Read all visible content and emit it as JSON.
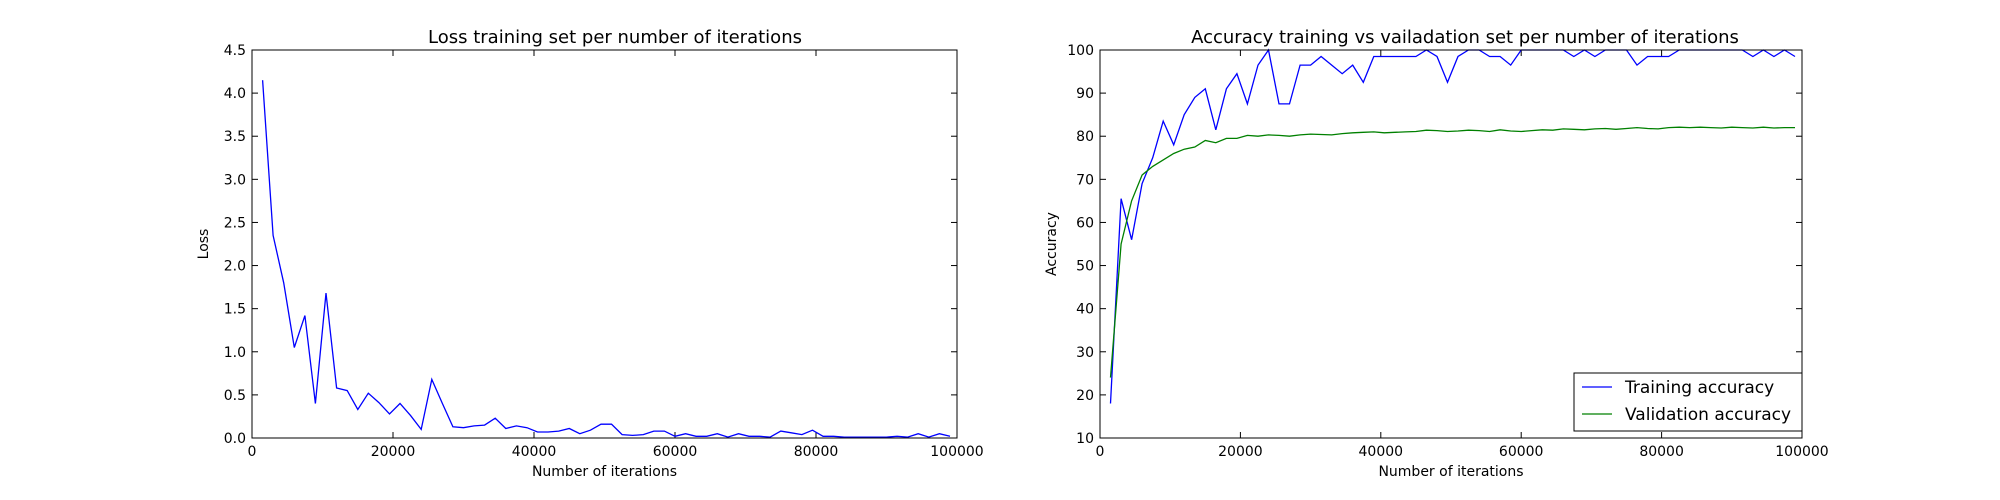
{
  "chart_data": [
    {
      "type": "line",
      "title": "Loss training set per number of iterations",
      "xlabel": "Number of iterations",
      "ylabel": "Loss",
      "xlim": [
        0,
        100000
      ],
      "ylim": [
        0,
        4.5
      ],
      "xticks": [
        "0",
        "20000",
        "40000",
        "60000",
        "80000",
        "100000"
      ],
      "yticks": [
        "0.0",
        "0.5",
        "1.0",
        "1.5",
        "2.0",
        "2.5",
        "3.0",
        "3.5",
        "4.0",
        "4.5"
      ],
      "grid": false,
      "series": [
        {
          "color": "#0000ff",
          "x": [
            1500,
            3000,
            4500,
            6000,
            7500,
            9000,
            10500,
            12000,
            13500,
            15000,
            16500,
            18000,
            19500,
            21000,
            22500,
            24000,
            25500,
            27000,
            28500,
            30000,
            31500,
            33000,
            34500,
            36000,
            37500,
            39000,
            40500,
            42000,
            43500,
            45000,
            46500,
            48000,
            49500,
            51000,
            52500,
            54000,
            55500,
            57000,
            58500,
            60000,
            61500,
            63000,
            64500,
            66000,
            67500,
            69000,
            70500,
            72000,
            73500,
            75000,
            76500,
            78000,
            79500,
            81000,
            82500,
            84000,
            85500,
            87000,
            88500,
            90000,
            91500,
            93000,
            94500,
            96000,
            97500,
            99000
          ],
          "y": [
            4.15,
            2.35,
            1.8,
            1.05,
            1.42,
            0.4,
            1.68,
            0.58,
            0.55,
            0.33,
            0.52,
            0.41,
            0.28,
            0.4,
            0.26,
            0.1,
            0.68,
            0.4,
            0.13,
            0.12,
            0.14,
            0.15,
            0.23,
            0.11,
            0.14,
            0.12,
            0.07,
            0.07,
            0.08,
            0.11,
            0.05,
            0.09,
            0.16,
            0.16,
            0.04,
            0.03,
            0.04,
            0.08,
            0.08,
            0.02,
            0.05,
            0.02,
            0.02,
            0.05,
            0.01,
            0.05,
            0.02,
            0.02,
            0.01,
            0.08,
            0.06,
            0.04,
            0.09,
            0.02,
            0.02,
            0.01,
            0.01,
            0.01,
            0.01,
            0.01,
            0.02,
            0.01,
            0.05,
            0.01,
            0.05,
            0.02
          ]
        }
      ]
    },
    {
      "type": "line",
      "title": "Accuracy training vs vailadation set per number of iterations",
      "xlabel": "Number of iterations",
      "ylabel": "Accuracy",
      "xlim": [
        0,
        100000
      ],
      "ylim": [
        10,
        100
      ],
      "xticks": [
        "0",
        "20000",
        "40000",
        "60000",
        "80000",
        "100000"
      ],
      "yticks": [
        "10",
        "20",
        "30",
        "40",
        "50",
        "60",
        "70",
        "80",
        "90",
        "100"
      ],
      "grid": false,
      "legend_position": "lower-right",
      "series": [
        {
          "name": "Training accuracy",
          "color": "#0000ff",
          "x": [
            1500,
            3000,
            4500,
            6000,
            7500,
            9000,
            10500,
            12000,
            13500,
            15000,
            16500,
            18000,
            19500,
            21000,
            22500,
            24000,
            25500,
            27000,
            28500,
            30000,
            31500,
            33000,
            34500,
            36000,
            37500,
            39000,
            40500,
            42000,
            43500,
            45000,
            46500,
            48000,
            49500,
            51000,
            52500,
            54000,
            55500,
            57000,
            58500,
            60000,
            61500,
            63000,
            64500,
            66000,
            67500,
            69000,
            70500,
            72000,
            73500,
            75000,
            76500,
            78000,
            79500,
            81000,
            82500,
            84000,
            85500,
            87000,
            88500,
            90000,
            91500,
            93000,
            94500,
            96000,
            97500,
            99000
          ],
          "y": [
            18,
            65.5,
            56,
            69,
            75,
            83.5,
            78,
            85,
            89,
            91,
            81.5,
            91,
            94.5,
            87.5,
            96.5,
            100,
            87.5,
            87.5,
            96.5,
            96.5,
            98.5,
            96.5,
            94.5,
            96.5,
            92.5,
            98.5,
            98.5,
            98.5,
            98.5,
            98.5,
            100,
            98.5,
            92.5,
            98.5,
            100,
            100,
            98.5,
            98.5,
            96.5,
            100,
            100,
            100,
            100,
            100,
            98.5,
            100,
            98.5,
            100,
            100,
            100,
            96.5,
            98.5,
            98.5,
            98.5,
            100,
            100,
            100,
            100,
            100,
            100,
            100,
            98.5,
            100,
            98.5,
            100,
            98.5
          ]
        },
        {
          "name": "Validation accuracy",
          "color": "#008000",
          "x": [
            1500,
            3000,
            4500,
            6000,
            7500,
            9000,
            10500,
            12000,
            13500,
            15000,
            16500,
            18000,
            19500,
            21000,
            22500,
            24000,
            25500,
            27000,
            28500,
            30000,
            31500,
            33000,
            34500,
            36000,
            37500,
            39000,
            40500,
            42000,
            43500,
            45000,
            46500,
            48000,
            49500,
            51000,
            52500,
            54000,
            55500,
            57000,
            58500,
            60000,
            61500,
            63000,
            64500,
            66000,
            67500,
            69000,
            70500,
            72000,
            73500,
            75000,
            76500,
            78000,
            79500,
            81000,
            82500,
            84000,
            85500,
            87000,
            88500,
            90000,
            91500,
            93000,
            94500,
            96000,
            97500,
            99000
          ],
          "y": [
            24,
            55,
            65,
            71,
            73,
            74.5,
            76,
            77,
            77.5,
            79,
            78.5,
            79.5,
            79.5,
            80.2,
            80,
            80.3,
            80.2,
            80,
            80.3,
            80.5,
            80.4,
            80.3,
            80.6,
            80.8,
            80.9,
            81,
            80.8,
            80.9,
            81,
            81.1,
            81.4,
            81.3,
            81.1,
            81.2,
            81.4,
            81.3,
            81.1,
            81.5,
            81.2,
            81.1,
            81.3,
            81.5,
            81.4,
            81.7,
            81.6,
            81.5,
            81.7,
            81.8,
            81.6,
            81.8,
            82,
            81.8,
            81.7,
            82,
            82.1,
            82,
            82.1,
            82,
            81.9,
            82.1,
            82,
            81.9,
            82.1,
            81.9,
            82,
            82
          ]
        }
      ]
    }
  ]
}
